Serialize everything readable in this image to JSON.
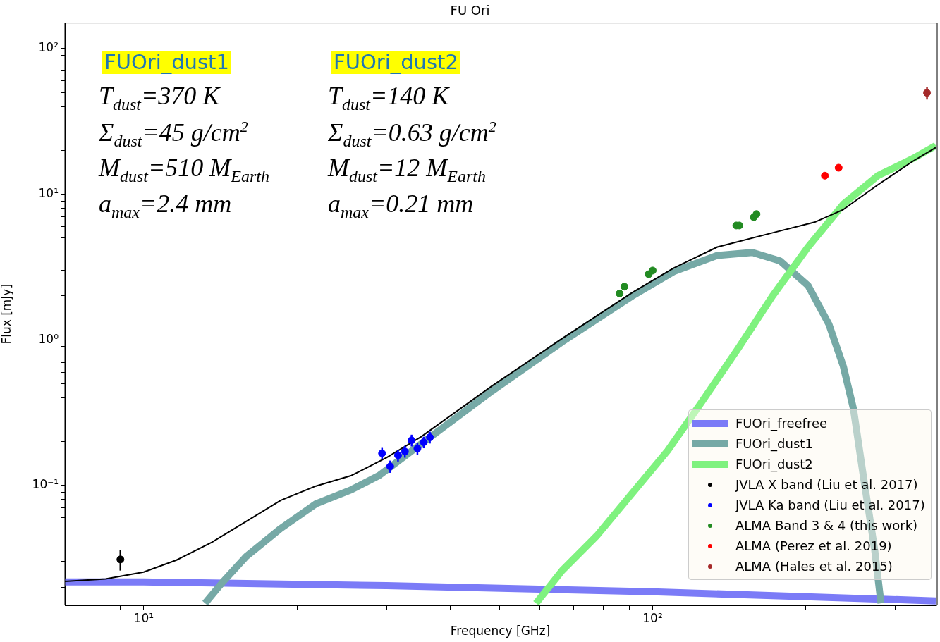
{
  "chart_data": {
    "type": "line",
    "title": "FU Ori",
    "xlabel": "Frequency [GHz]",
    "ylabel": "Flux [mJy]",
    "log": "xy",
    "grid": false,
    "legend": "bottom right",
    "xlim": [
      7,
      360
    ],
    "ylim": [
      0.015,
      150
    ],
    "xticks": [
      {
        "value": 8,
        "label": null
      },
      {
        "value": 9,
        "label": null
      },
      {
        "value": 10,
        "label": "10¹"
      },
      {
        "value": 20,
        "label": null
      },
      {
        "value": 30,
        "label": null
      },
      {
        "value": 40,
        "label": null
      },
      {
        "value": 50,
        "label": null
      },
      {
        "value": 60,
        "label": null
      },
      {
        "value": 70,
        "label": null
      },
      {
        "value": 80,
        "label": null
      },
      {
        "value": 90,
        "label": null
      },
      {
        "value": 100,
        "label": "10²"
      },
      {
        "value": 200,
        "label": null
      },
      {
        "value": 300,
        "label": null
      }
    ],
    "yticks": [
      {
        "value": 0.02,
        "label": null
      },
      {
        "value": 0.03,
        "label": null
      },
      {
        "value": 0.04,
        "label": null
      },
      {
        "value": 0.05,
        "label": null
      },
      {
        "value": 0.06,
        "label": null
      },
      {
        "value": 0.07,
        "label": null
      },
      {
        "value": 0.08,
        "label": null
      },
      {
        "value": 0.09,
        "label": null
      },
      {
        "value": 0.1,
        "label": "10⁻¹"
      },
      {
        "value": 0.2,
        "label": null
      },
      {
        "value": 0.3,
        "label": null
      },
      {
        "value": 0.4,
        "label": null
      },
      {
        "value": 0.5,
        "label": null
      },
      {
        "value": 0.6,
        "label": null
      },
      {
        "value": 0.7,
        "label": null
      },
      {
        "value": 0.8,
        "label": null
      },
      {
        "value": 0.9,
        "label": null
      },
      {
        "value": 1,
        "label": "10⁰"
      },
      {
        "value": 2,
        "label": null
      },
      {
        "value": 3,
        "label": null
      },
      {
        "value": 4,
        "label": null
      },
      {
        "value": 5,
        "label": null
      },
      {
        "value": 6,
        "label": null
      },
      {
        "value": 7,
        "label": null
      },
      {
        "value": 8,
        "label": null
      },
      {
        "value": 9,
        "label": null
      },
      {
        "value": 10,
        "label": "10¹"
      },
      {
        "value": 20,
        "label": null
      },
      {
        "value": 30,
        "label": null
      },
      {
        "value": 40,
        "label": null
      },
      {
        "value": 50,
        "label": null
      },
      {
        "value": 60,
        "label": null
      },
      {
        "value": 70,
        "label": null
      },
      {
        "value": 80,
        "label": null
      },
      {
        "value": 90,
        "label": null
      },
      {
        "value": 100,
        "label": "10²"
      }
    ],
    "series": [
      {
        "name": "FUOri_freefree",
        "color": "#7b7bf7",
        "x": [
          7,
          10,
          30,
          100,
          200,
          360
        ],
        "values": [
          0.0217,
          0.0217,
          0.0205,
          0.0186,
          0.0172,
          0.0161
        ]
      },
      {
        "name": "FUOri_dust1",
        "color": "#76a9a6",
        "x": [
          13.2,
          14.3,
          15.9,
          18.6,
          21.8,
          25.6,
          29.0,
          35.1,
          48.3,
          66.4,
          91.2,
          110,
          134,
          157,
          178,
          202,
          222,
          237,
          248,
          260,
          273,
          281
        ],
        "values": [
          0.0155,
          0.0217,
          0.0325,
          0.0507,
          0.0748,
          0.0935,
          0.117,
          0.193,
          0.444,
          0.967,
          2.0,
          2.94,
          3.8,
          3.98,
          3.48,
          2.36,
          1.28,
          0.656,
          0.337,
          0.11,
          0.0363,
          0.0155
        ]
      },
      {
        "name": "FUOri_dust2",
        "color": "#7ff27f",
        "x": [
          59,
          66.4,
          77.8,
          91.2,
          107,
          125,
          147,
          172,
          202,
          237,
          277,
          325,
          360
        ],
        "values": [
          0.0155,
          0.026,
          0.0454,
          0.0885,
          0.173,
          0.376,
          0.865,
          2.0,
          4.34,
          8.55,
          13.4,
          17.6,
          21.6
        ]
      },
      {
        "color": "#000000",
        "x": [
          7,
          8.42,
          10,
          11.6,
          13.6,
          15.9,
          18.6,
          21.8,
          25.6,
          30.0,
          35.1,
          48.3,
          66.4,
          91.2,
          110,
          134,
          172,
          208,
          237,
          277,
          325,
          360
        ],
        "values": [
          0.0219,
          0.0228,
          0.0254,
          0.0307,
          0.0406,
          0.0566,
          0.079,
          0.099,
          0.117,
          0.155,
          0.216,
          0.481,
          1.02,
          2.11,
          3.11,
          4.34,
          5.43,
          6.42,
          7.85,
          11.6,
          16.9,
          20.9
        ]
      },
      {
        "type": "scatter",
        "marker": "circle",
        "name": "JVLA X band (Liu et al. 2017)",
        "color": "#000000",
        "x": [
          9.0
        ],
        "values": [
          0.031
        ],
        "errors": [
          0.005
        ]
      },
      {
        "type": "scatter",
        "marker": "circle",
        "name": "JVLA Ka band (Liu et al. 2017)",
        "color": "#0000ff",
        "x": [
          29.4,
          30.5,
          31.6,
          32.6,
          33.6,
          34.5,
          35.5,
          36.5
        ],
        "values": [
          0.166,
          0.135,
          0.161,
          0.171,
          0.204,
          0.179,
          0.198,
          0.214
        ],
        "errors": [
          0.015,
          0.013,
          0.015,
          0.016,
          0.019,
          0.017,
          0.018,
          0.02
        ]
      },
      {
        "type": "scatter",
        "marker": "circle",
        "name": "ALMA Band 3 & 4 (this work)",
        "color": "#228b22",
        "x": [
          86.1,
          88.0,
          98.2,
          100,
          146,
          148,
          158,
          160
        ],
        "values": [
          2.08,
          2.32,
          2.82,
          2.99,
          6.1,
          6.1,
          6.95,
          7.3
        ]
      },
      {
        "type": "scatter",
        "marker": "circle",
        "name": "ALMA (Perez et al. 2019)",
        "color": "#ff0000",
        "x": [
          218,
          232
        ],
        "values": [
          13.4,
          15.2
        ]
      },
      {
        "type": "scatter",
        "marker": "circle",
        "name": "ALMA (Hales et al. 2015)",
        "color": "#a52a2a",
        "x": [
          346
        ],
        "values": [
          49.7
        ],
        "errors": [
          5
        ]
      }
    ],
    "annotations": [
      "FUOri_dust1",
      "T$_{dust}$=370 K",
      "Σ$_{dust}$=45 g/cm$^{2}$",
      "M$_{dust}$=510 M$_{Earth}$",
      "a$_{max}$=2.4 mm",
      "FUOri_dust2",
      "T$_{dust}$=140 K",
      "Σ$_{dust}$=0.63 g/cm$^{2}$",
      "M$_{dust}$=12 M$_{Earth}$",
      "a$_{max}$=0.21 mm"
    ]
  }
}
